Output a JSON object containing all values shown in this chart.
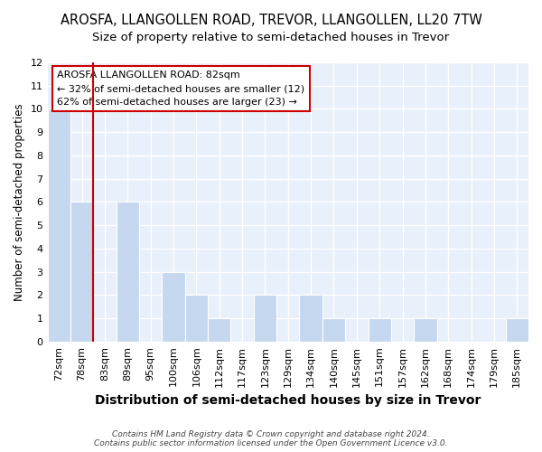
{
  "title_line1": "AROSFA, LLANGOLLEN ROAD, TREVOR, LLANGOLLEN, LL20 7TW",
  "title_line2": "Size of property relative to semi-detached houses in Trevor",
  "xlabel": "Distribution of semi-detached houses by size in Trevor",
  "ylabel": "Number of semi-detached properties",
  "categories": [
    "72sqm",
    "78sqm",
    "83sqm",
    "89sqm",
    "95sqm",
    "100sqm",
    "106sqm",
    "112sqm",
    "117sqm",
    "123sqm",
    "129sqm",
    "134sqm",
    "140sqm",
    "145sqm",
    "151sqm",
    "157sqm",
    "162sqm",
    "168sqm",
    "174sqm",
    "179sqm",
    "185sqm"
  ],
  "values": [
    10,
    6,
    0,
    6,
    0,
    3,
    2,
    1,
    0,
    2,
    0,
    2,
    1,
    0,
    1,
    0,
    1,
    0,
    0,
    0,
    1
  ],
  "bar_color": "#c5d8f0",
  "red_line_index": 2,
  "annotation_line1": "AROSFA LLANGOLLEN ROAD: 82sqm",
  "annotation_line2": "← 32% of semi-detached houses are smaller (12)",
  "annotation_line3": "62% of semi-detached houses are larger (23) →",
  "annotation_border_color": "#cc0000",
  "footer_line1": "Contains HM Land Registry data © Crown copyright and database right 2024.",
  "footer_line2": "Contains public sector information licensed under the Open Government Licence v3.0.",
  "ylim": [
    0,
    12
  ],
  "yticks": [
    0,
    1,
    2,
    3,
    4,
    5,
    6,
    7,
    8,
    9,
    10,
    11,
    12
  ],
  "bg_color": "#e8f0fb",
  "grid_color": "#ffffff",
  "title_fontsize": 10.5,
  "subtitle_fontsize": 9.5,
  "ylabel_fontsize": 8.5,
  "xlabel_fontsize": 10,
  "tick_fontsize": 8
}
